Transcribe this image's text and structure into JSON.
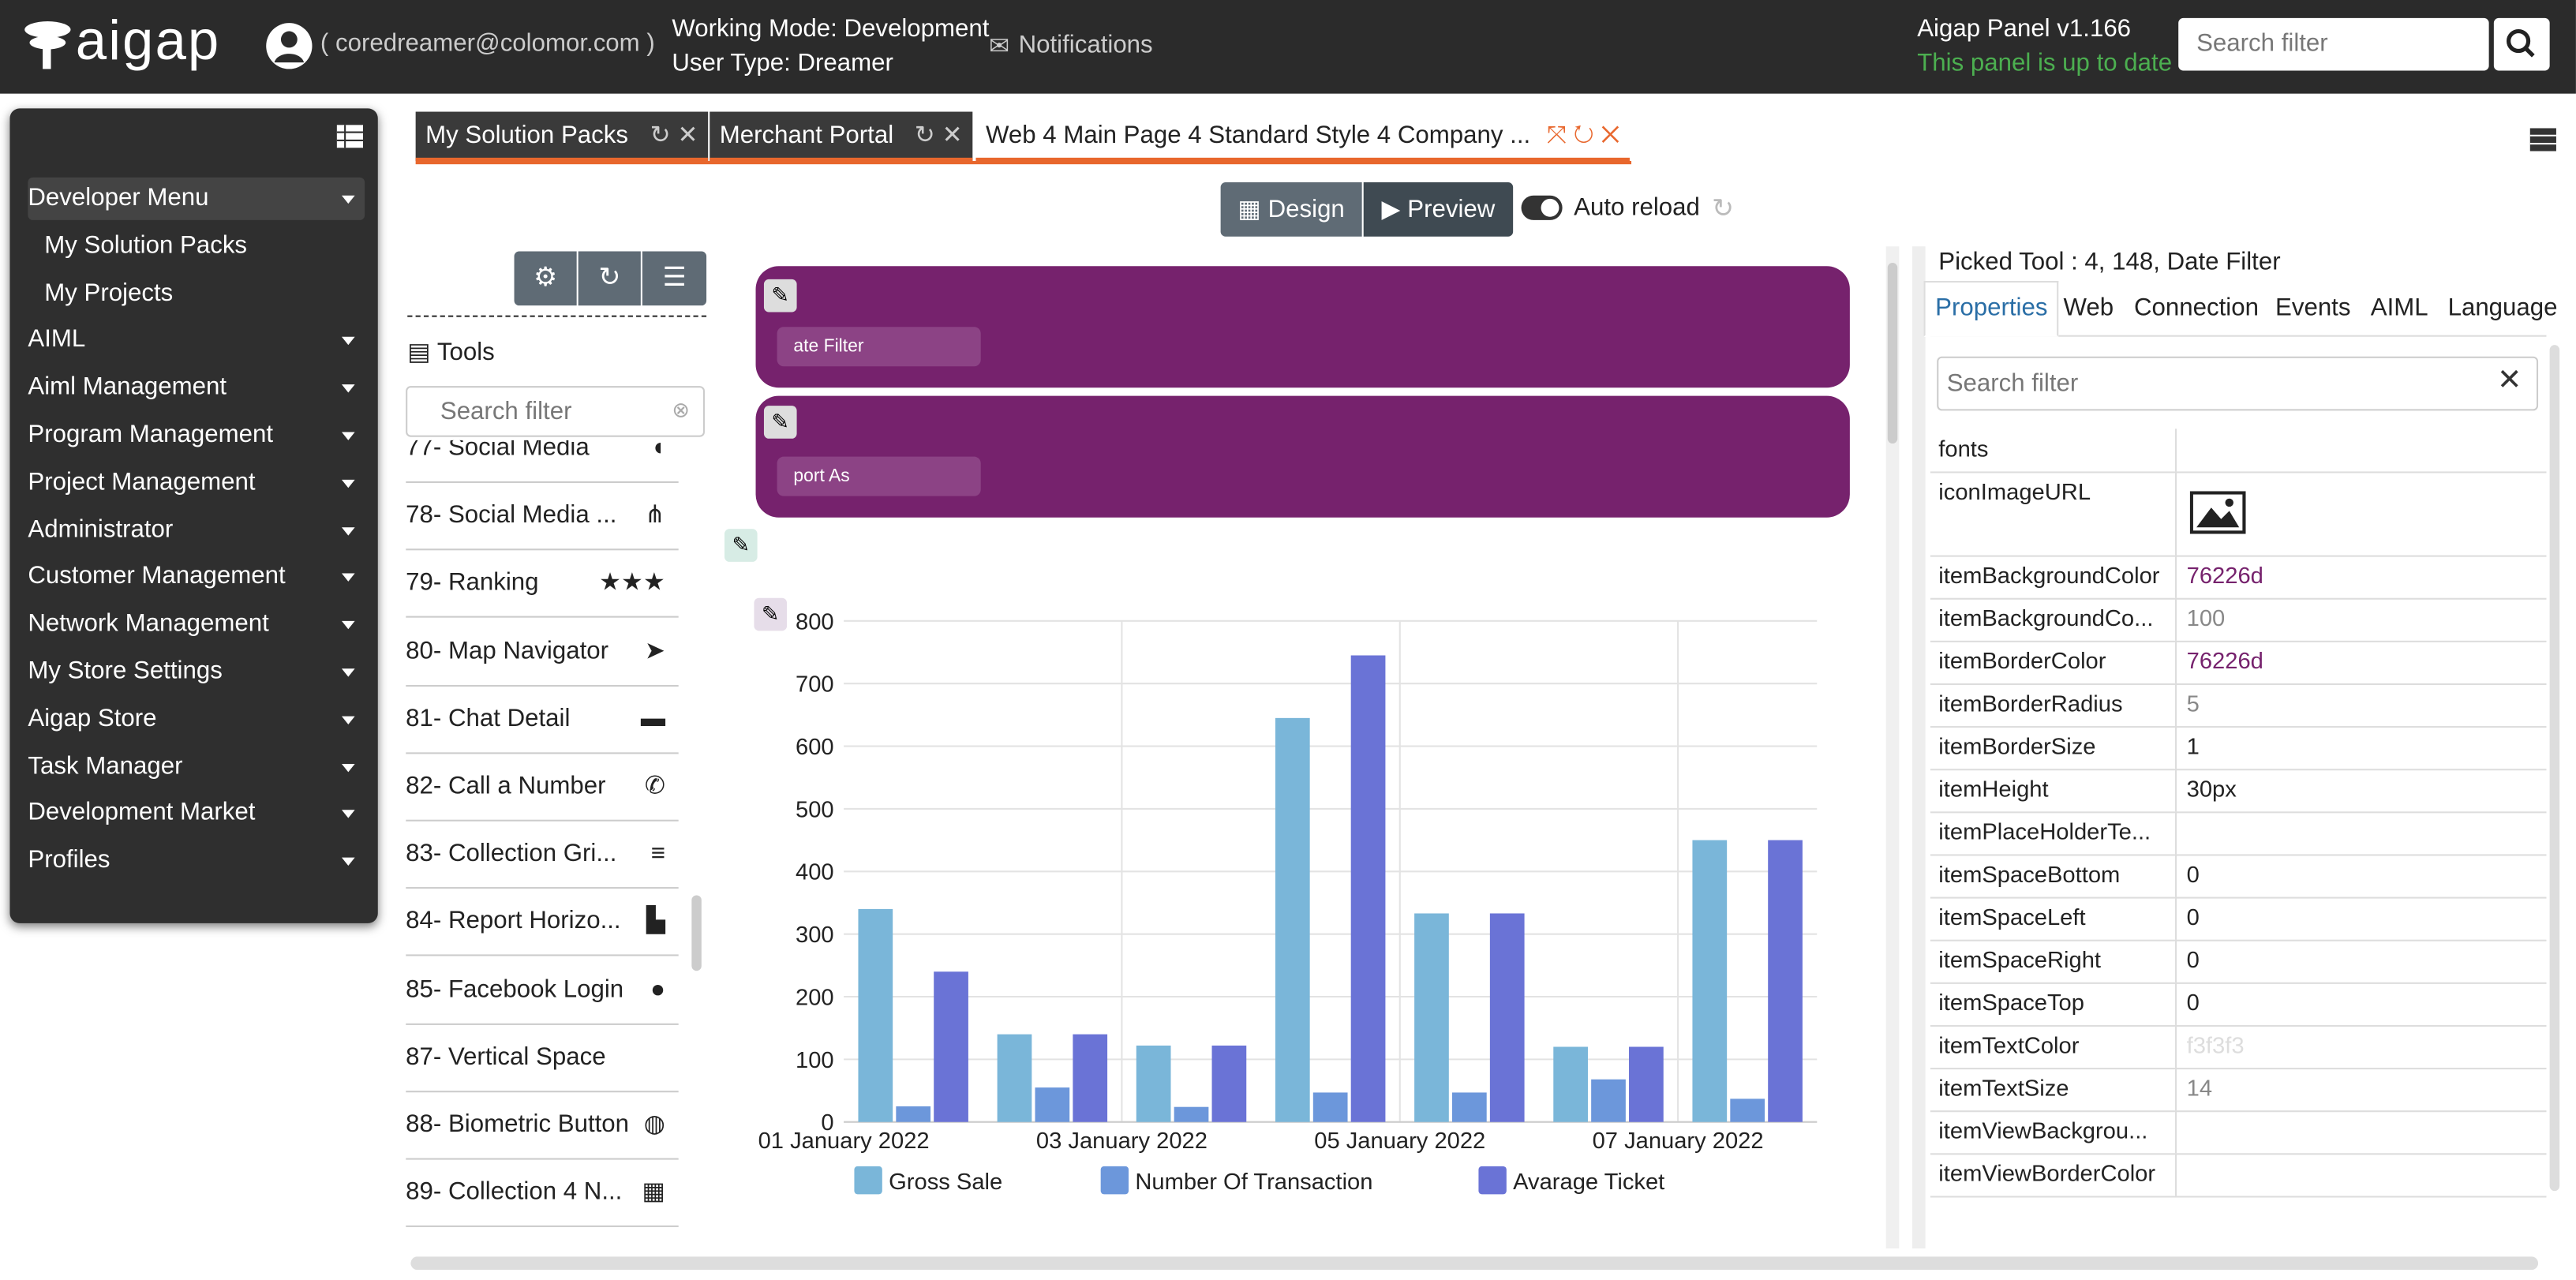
{
  "header": {
    "logo": "aigap",
    "user": "( coredreamer@colomor.com )",
    "working_mode": "Working Mode: Development",
    "user_type": "User Type: Dreamer",
    "notifications": "Notifications",
    "panel_version": "Aigap Panel v1.166",
    "status": "This panel is up to date",
    "search_placeholder": "Search filter"
  },
  "menu": {
    "items": [
      {
        "label": "Developer Menu",
        "children": [
          "My Solution Packs",
          "My Projects"
        ]
      },
      {
        "label": "AIML"
      },
      {
        "label": "Aiml Management"
      },
      {
        "label": "Program Management"
      },
      {
        "label": "Project Management"
      },
      {
        "label": "Administrator"
      },
      {
        "label": "Customer Management"
      },
      {
        "label": "Network Management"
      },
      {
        "label": "My Store Settings"
      },
      {
        "label": "Aigap Store"
      },
      {
        "label": "Task Manager"
      },
      {
        "label": "Development Market"
      },
      {
        "label": "Profiles"
      }
    ]
  },
  "tabs": [
    "My Solution Packs",
    "Merchant Portal",
    "Web 4 Main Page 4 Standard Style 4 Company ..."
  ],
  "toolbar": {
    "design": "Design",
    "preview": "Preview",
    "auto_reload": "Auto reload"
  },
  "tools": {
    "title": "Tools",
    "search_placeholder": "Search filter",
    "items": [
      "77- Social Media",
      "78- Social Media ...",
      "79- Ranking",
      "80- Map Navigator",
      "81- Chat Detail",
      "82- Call a Number",
      "83- Collection Gri...",
      "84- Report Horizo...",
      "85- Facebook Login",
      "87- Vertical Space",
      "88- Biometric Button",
      "89- Collection 4 N..."
    ]
  },
  "design": {
    "widgets": [
      "ate Filter",
      "port As"
    ]
  },
  "chart_data": {
    "type": "bar",
    "categories": [
      "01 January 2022",
      null,
      "03 January 2022",
      null,
      "05 January 2022",
      null,
      "07 January 2022"
    ],
    "series": [
      {
        "name": "Gross Sale",
        "color": "#7ab6d9",
        "values": [
          340,
          140,
          122,
          645,
          333,
          120,
          450
        ]
      },
      {
        "name": "Number Of Transaction",
        "color": "#6c97db",
        "values": [
          25,
          55,
          24,
          47,
          47,
          68,
          37
        ]
      },
      {
        "name": "Avarage Ticket",
        "color": "#6a73d6",
        "values": [
          240,
          140,
          122,
          745,
          333,
          120,
          450
        ]
      }
    ],
    "ylim": [
      0,
      800
    ],
    "yticks": [
      0,
      100,
      200,
      300,
      400,
      500,
      600,
      700,
      800
    ],
    "grid": true,
    "legend": "bottom"
  },
  "properties": {
    "picked": "Picked Tool : 4, 148, Date Filter",
    "tabs": [
      "Properties",
      "Web",
      "Connection",
      "Events",
      "AIML",
      "Language"
    ],
    "search_placeholder": "Search filter",
    "rows": [
      {
        "name": "fonts"
      },
      {
        "name": "iconImageURL"
      },
      {
        "name": "itemBackgroundColor",
        "value": "76226d"
      },
      {
        "name": "itemBackgroundCo...",
        "value": "100"
      },
      {
        "name": "itemBorderColor",
        "value": "76226d"
      },
      {
        "name": "itemBorderRadius",
        "value": "5"
      },
      {
        "name": "itemBorderSize",
        "value": "1"
      },
      {
        "name": "itemHeight",
        "value": "30px"
      },
      {
        "name": "itemPlaceHolderTe..."
      },
      {
        "name": "itemSpaceBottom",
        "value": "0"
      },
      {
        "name": "itemSpaceLeft",
        "value": "0"
      },
      {
        "name": "itemSpaceRight",
        "value": "0"
      },
      {
        "name": "itemSpaceTop",
        "value": "0"
      },
      {
        "name": "itemTextColor",
        "value": "f3f3f3"
      },
      {
        "name": "itemTextSize",
        "value": "14"
      },
      {
        "name": "itemViewBackgrou..."
      },
      {
        "name": "itemViewBorderColor"
      }
    ]
  }
}
